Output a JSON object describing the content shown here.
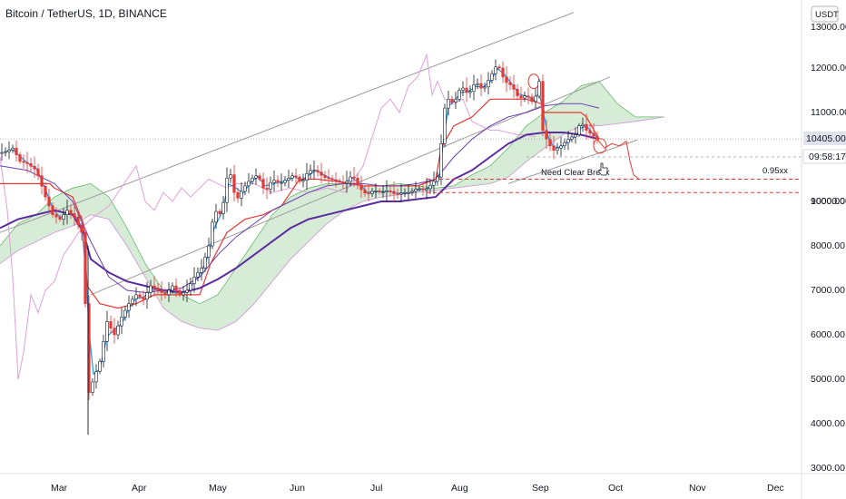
{
  "header": {
    "title": "Bitcoin / TetherUS, 1D, BINANCE",
    "currency_button": "USDT"
  },
  "price_axis": {
    "ticks": [
      "13000.00",
      "12000.00",
      "11000.00",
      "10000.00",
      "9000.00",
      "8000.00",
      "7000.00",
      "6000.00",
      "5000.00",
      "4000.00",
      "3000.00"
    ],
    "current_price_label": "10405.00",
    "countdown_label": "09:58:17"
  },
  "time_axis": {
    "ticks": [
      "Mar",
      "Apr",
      "May",
      "Jun",
      "Jul",
      "Aug",
      "Sep",
      "Oct",
      "Nov",
      "Dec"
    ]
  },
  "annotations": {
    "need_clear_break": "Need Clear Break",
    "fib_label": "0.95xx"
  },
  "colors": {
    "up_candle": "#131722",
    "down_candle": "#e53935",
    "tenkan": "#2196f3",
    "kijun": "#e53935",
    "chikou": "#e1a0d8",
    "sma_long": "#5b2ca0",
    "sma_mid": "#6a3fb0",
    "cloud_bull": "#c8e6c9",
    "cloud_bear": "#f8c8c8",
    "channel": "#9e9e9e",
    "support_dashed": "#e53935"
  },
  "chart_data": {
    "type": "candlestick",
    "symbol": "Bitcoin / TetherUS",
    "interval": "1D",
    "exchange": "BINANCE",
    "quote_currency": "USDT",
    "ylim": [
      3000,
      13600
    ],
    "last_price": 10405.0,
    "support_levels": [
      9500,
      9200
    ],
    "monthly_close_approx": [
      {
        "month": "Mar",
        "close": 6400
      },
      {
        "month": "Apr",
        "close": 8650
      },
      {
        "month": "May",
        "close": 9450
      },
      {
        "month": "Jun",
        "close": 9150
      },
      {
        "month": "Jul",
        "close": 11300
      },
      {
        "month": "Aug",
        "close": 11650
      },
      {
        "month": "Sep",
        "close": 10780
      }
    ],
    "x_axis_months": [
      "Mar",
      "Apr",
      "May",
      "Jun",
      "Jul",
      "Aug",
      "Sep",
      "Oct",
      "Nov",
      "Dec"
    ]
  }
}
